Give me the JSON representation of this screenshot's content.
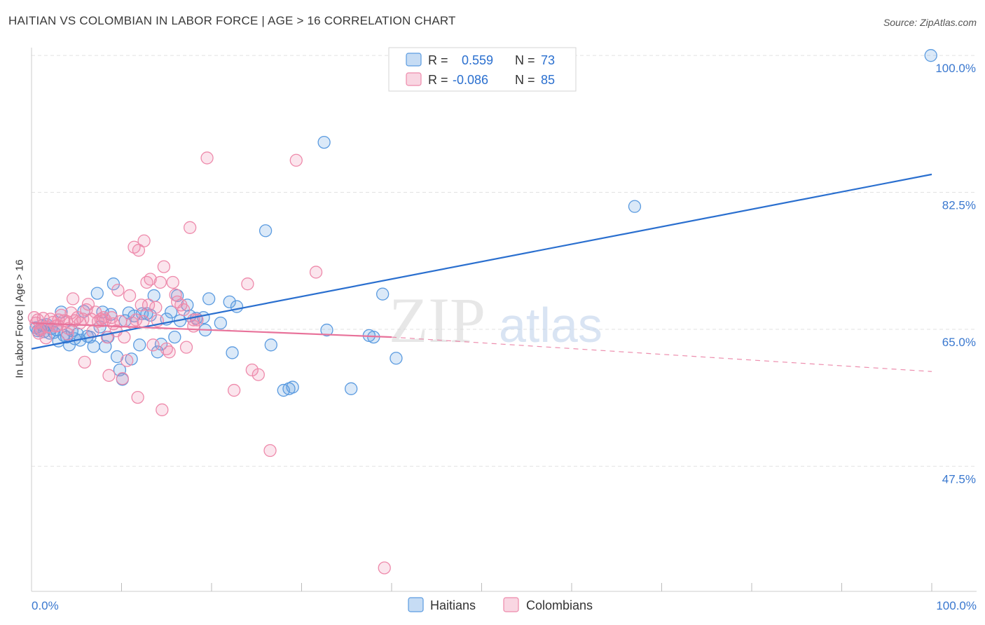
{
  "title": "HAITIAN VS COLOMBIAN IN LABOR FORCE | AGE > 16 CORRELATION CHART",
  "source": "Source: ZipAtlas.com",
  "watermark": {
    "zip": "ZIP",
    "atlas": "atlas"
  },
  "colors": {
    "blue": "#5b9be0",
    "blue_line": "#2a6fcf",
    "pink": "#ee8aab",
    "pink_line": "#e8729a",
    "axis_text": "#3a78cf"
  },
  "chart_data": {
    "type": "scatter",
    "title": "HAITIAN VS COLOMBIAN IN LABOR FORCE | AGE > 16 CORRELATION CHART",
    "xlabel": "",
    "ylabel": "In Labor Force | Age > 16",
    "xlim": [
      0,
      100
    ],
    "ylim": [
      31.5,
      101
    ],
    "x_tick_labels": [
      "0.0%",
      "100.0%"
    ],
    "y_ticks": [
      47.5,
      65.0,
      82.5,
      100.0
    ],
    "y_tick_labels": [
      "47.5%",
      "65.0%",
      "82.5%",
      "100.0%"
    ],
    "legend_stats": [
      {
        "r_label": "R =",
        "r_value": "0.559",
        "n_label": "N =",
        "n_value": "73"
      },
      {
        "r_label": "R =",
        "r_value": "-0.086",
        "n_label": "N =",
        "n_value": "85"
      }
    ],
    "series": [
      {
        "name": "Haitians",
        "color": "#5b9be0",
        "trend": {
          "x": [
            0,
            100
          ],
          "y": [
            62.5,
            84.8
          ],
          "style": "solid"
        },
        "points": [
          [
            0.5,
            65.2
          ],
          [
            0.7,
            64.8
          ],
          [
            1.0,
            64.9
          ],
          [
            1.2,
            65.5
          ],
          [
            1.4,
            64.7
          ],
          [
            1.7,
            65.6
          ],
          [
            2.0,
            64.5
          ],
          [
            2.2,
            65.1
          ],
          [
            2.5,
            64.6
          ],
          [
            2.8,
            64.9
          ],
          [
            3.0,
            63.5
          ],
          [
            3.3,
            67.2
          ],
          [
            3.6,
            64.2
          ],
          [
            3.9,
            64.0
          ],
          [
            4.2,
            63.0
          ],
          [
            4.5,
            64.8
          ],
          [
            4.8,
            63.8
          ],
          [
            5.1,
            64.4
          ],
          [
            5.4,
            63.6
          ],
          [
            5.8,
            67.3
          ],
          [
            6.2,
            64.1
          ],
          [
            6.5,
            64.0
          ],
          [
            6.9,
            62.8
          ],
          [
            7.3,
            69.6
          ],
          [
            7.6,
            65.3
          ],
          [
            7.9,
            67.2
          ],
          [
            8.2,
            62.8
          ],
          [
            8.5,
            64.0
          ],
          [
            8.8,
            66.9
          ],
          [
            9.1,
            70.8
          ],
          [
            9.5,
            61.5
          ],
          [
            9.8,
            59.8
          ],
          [
            10.1,
            58.6
          ],
          [
            10.4,
            66.1
          ],
          [
            10.8,
            67.1
          ],
          [
            11.1,
            61.2
          ],
          [
            11.4,
            66.7
          ],
          [
            12.0,
            63.0
          ],
          [
            12.3,
            67.0
          ],
          [
            12.8,
            67.0
          ],
          [
            13.2,
            66.8
          ],
          [
            13.6,
            69.3
          ],
          [
            14.0,
            62.1
          ],
          [
            14.4,
            63.1
          ],
          [
            15.0,
            66.3
          ],
          [
            15.5,
            67.2
          ],
          [
            15.9,
            64.0
          ],
          [
            16.2,
            69.3
          ],
          [
            16.5,
            66.1
          ],
          [
            17.3,
            68.1
          ],
          [
            17.6,
            66.7
          ],
          [
            18.3,
            66.4
          ],
          [
            19.1,
            66.5
          ],
          [
            19.3,
            64.9
          ],
          [
            19.7,
            68.9
          ],
          [
            21.0,
            65.8
          ],
          [
            22.0,
            68.5
          ],
          [
            22.3,
            62.0
          ],
          [
            22.8,
            67.9
          ],
          [
            26.0,
            77.6
          ],
          [
            26.6,
            63.0
          ],
          [
            28.0,
            57.2
          ],
          [
            28.6,
            57.4
          ],
          [
            29.0,
            57.6
          ],
          [
            32.5,
            88.9
          ],
          [
            32.8,
            64.9
          ],
          [
            35.5,
            57.4
          ],
          [
            37.5,
            64.2
          ],
          [
            38.0,
            64.0
          ],
          [
            39.0,
            69.5
          ],
          [
            40.5,
            61.3
          ],
          [
            67.0,
            80.7
          ],
          [
            99.9,
            100.0
          ]
        ]
      },
      {
        "name": "Colombians",
        "color": "#ee8aab",
        "trend": {
          "x": [
            0,
            40,
            100
          ],
          "y": [
            65.8,
            64.0,
            59.6
          ],
          "style": "solid-then-dashed",
          "solid_until": 40
        },
        "points": [
          [
            0.3,
            66.5
          ],
          [
            0.5,
            65.8
          ],
          [
            0.7,
            66.2
          ],
          [
            0.9,
            64.9
          ],
          [
            1.1,
            65.1
          ],
          [
            1.3,
            66.4
          ],
          [
            1.6,
            63.9
          ],
          [
            1.8,
            65.3
          ],
          [
            2.1,
            66.3
          ],
          [
            2.4,
            65.9
          ],
          [
            2.7,
            65.4
          ],
          [
            3.0,
            66.2
          ],
          [
            3.3,
            66.8
          ],
          [
            3.6,
            66.1
          ],
          [
            3.9,
            66.0
          ],
          [
            4.1,
            65.1
          ],
          [
            4.4,
            67.1
          ],
          [
            4.6,
            68.9
          ],
          [
            4.8,
            66.1
          ],
          [
            5.1,
            66.5
          ],
          [
            5.4,
            65.8
          ],
          [
            5.7,
            66.3
          ],
          [
            5.9,
            60.8
          ],
          [
            6.1,
            67.5
          ],
          [
            6.3,
            68.2
          ],
          [
            6.6,
            66.3
          ],
          [
            6.8,
            64.7
          ],
          [
            7.1,
            67.2
          ],
          [
            7.4,
            66.0
          ],
          [
            7.7,
            66.3
          ],
          [
            8.0,
            66.5
          ],
          [
            8.2,
            66.2
          ],
          [
            8.4,
            64.0
          ],
          [
            8.6,
            59.1
          ],
          [
            8.9,
            66.5
          ],
          [
            9.1,
            65.7
          ],
          [
            9.4,
            64.8
          ],
          [
            9.6,
            70.0
          ],
          [
            9.9,
            66.0
          ],
          [
            10.1,
            58.7
          ],
          [
            10.3,
            64.0
          ],
          [
            10.6,
            61.0
          ],
          [
            10.9,
            69.3
          ],
          [
            11.2,
            65.8
          ],
          [
            11.4,
            75.5
          ],
          [
            11.6,
            66.2
          ],
          [
            11.8,
            56.3
          ],
          [
            11.9,
            75.1
          ],
          [
            12.2,
            68.1
          ],
          [
            12.5,
            76.3
          ],
          [
            12.8,
            71.0
          ],
          [
            13.0,
            68.1
          ],
          [
            13.2,
            71.4
          ],
          [
            13.5,
            63.0
          ],
          [
            13.8,
            67.8
          ],
          [
            14.0,
            66.1
          ],
          [
            14.3,
            71.0
          ],
          [
            14.5,
            54.7
          ],
          [
            14.7,
            73.0
          ],
          [
            15.0,
            62.5
          ],
          [
            15.3,
            62.1
          ],
          [
            15.7,
            71.0
          ],
          [
            16.0,
            69.4
          ],
          [
            16.2,
            68.5
          ],
          [
            16.6,
            68.1
          ],
          [
            16.9,
            67.5
          ],
          [
            17.2,
            62.7
          ],
          [
            17.6,
            78.0
          ],
          [
            18.0,
            66.2
          ],
          [
            18.4,
            66.2
          ],
          [
            19.5,
            86.9
          ],
          [
            22.5,
            57.2
          ],
          [
            24.0,
            70.8
          ],
          [
            24.5,
            59.8
          ],
          [
            25.2,
            59.2
          ],
          [
            26.5,
            49.5
          ],
          [
            29.4,
            86.6
          ],
          [
            31.6,
            72.3
          ],
          [
            39.2,
            34.5
          ],
          [
            4.0,
            64.4
          ],
          [
            7.9,
            66.1
          ],
          [
            12.4,
            66.0
          ],
          [
            18.0,
            65.4
          ],
          [
            0.8,
            64.5
          ],
          [
            2.9,
            65.5
          ]
        ]
      }
    ]
  }
}
